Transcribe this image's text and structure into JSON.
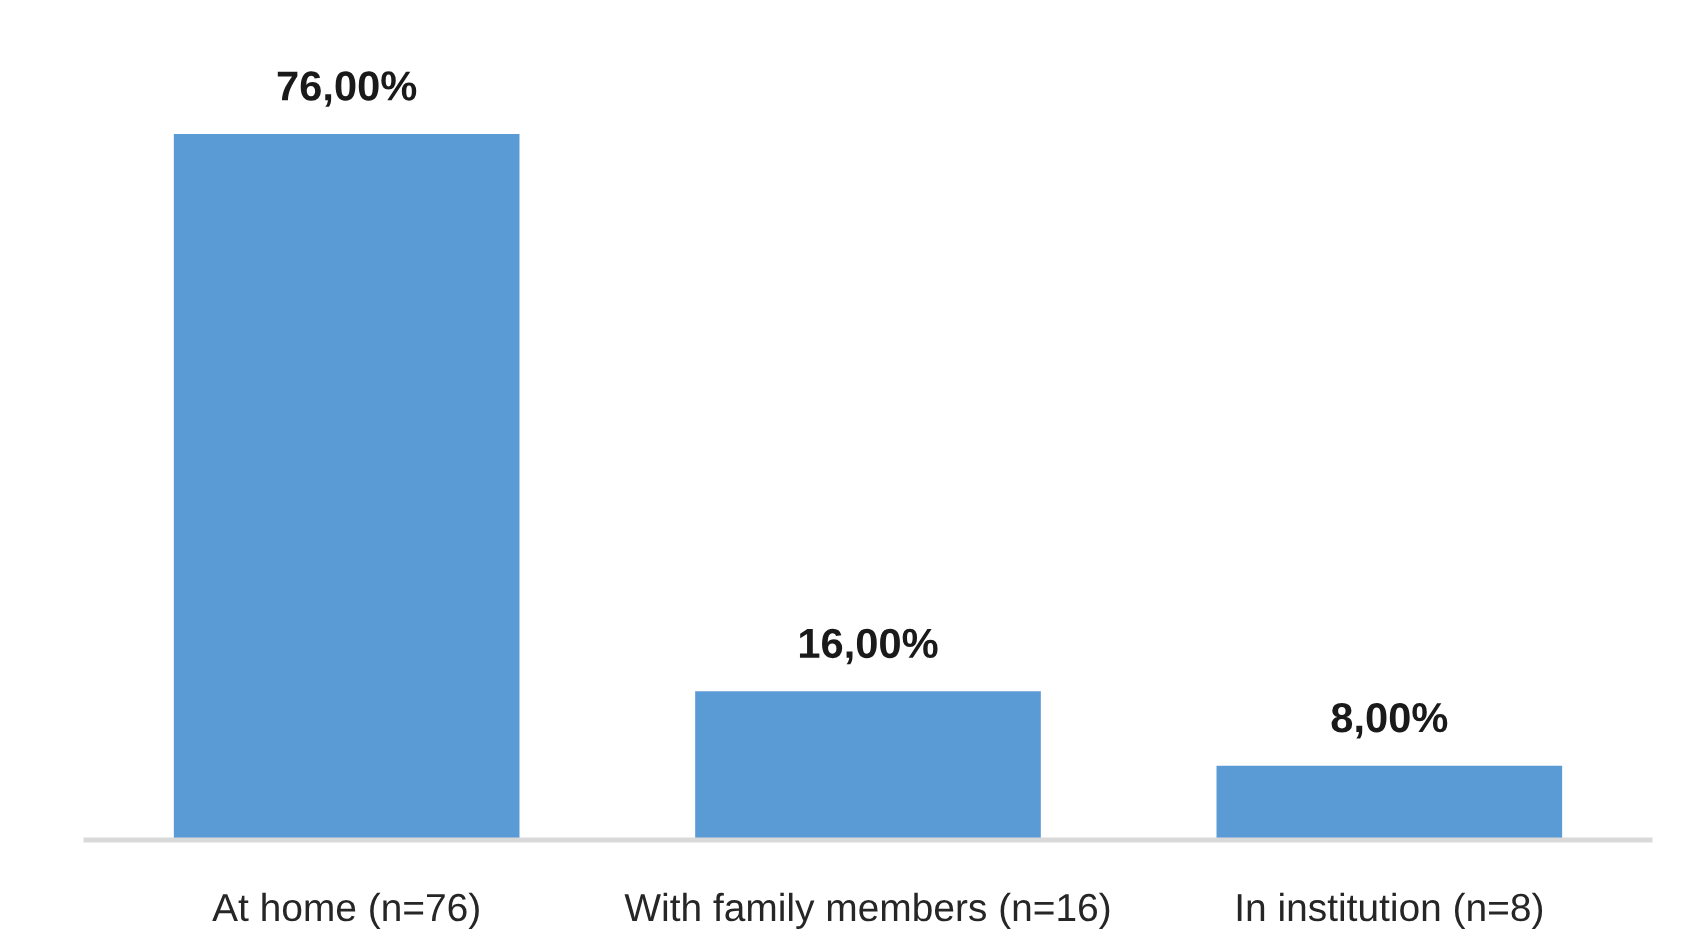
{
  "chart_data": {
    "type": "bar",
    "categories": [
      "At home (n=76)",
      "With family members (n=16)",
      "In institution (n=8)"
    ],
    "values": [
      76,
      16,
      8
    ],
    "color": "#5b9bd5",
    "value_labels": [
      "76,00%",
      "16,00%",
      "8,00%"
    ],
    "tick_labels": "x"
  }
}
